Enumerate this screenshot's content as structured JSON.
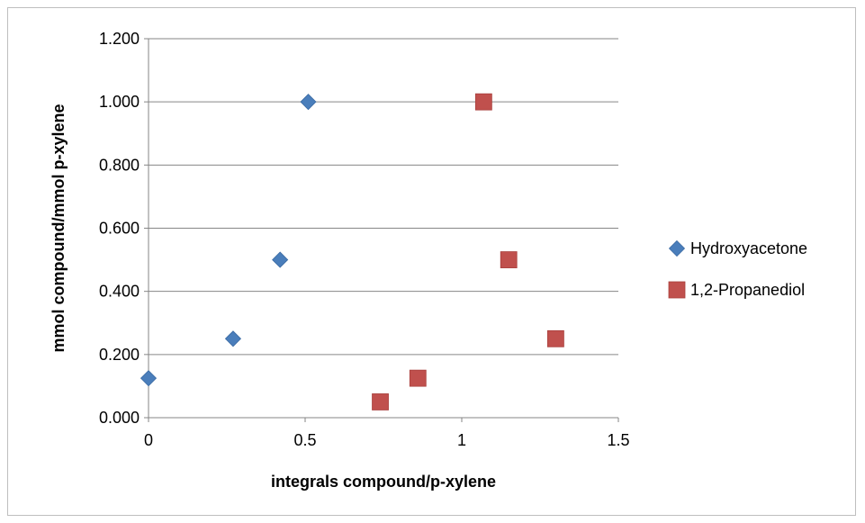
{
  "chart_data": {
    "type": "scatter",
    "title": "",
    "xlabel": "integrals compound/p-xylene",
    "ylabel": "mmol compound/mmol p-xylene",
    "xlim": [
      0,
      1.5
    ],
    "ylim": [
      0,
      1.2
    ],
    "x_ticks": [
      "0",
      "0.5",
      "1",
      "1.5"
    ],
    "y_ticks": [
      "0.000",
      "0.200",
      "0.400",
      "0.600",
      "0.800",
      "1.000",
      "1.200"
    ],
    "grid": "horizontal",
    "legend_position": "right",
    "series": [
      {
        "name": "Hydroxyacetone",
        "marker": "diamond",
        "color": "#4a7ebb",
        "points": [
          [
            0.0,
            0.125
          ],
          [
            0.27,
            0.25
          ],
          [
            0.42,
            0.5
          ],
          [
            0.51,
            1.0
          ]
        ]
      },
      {
        "name": "1,2-Propanediol",
        "marker": "square",
        "color": "#c0504d",
        "points": [
          [
            0.74,
            0.05
          ],
          [
            0.86,
            0.125
          ],
          [
            1.3,
            0.25
          ],
          [
            1.15,
            0.5
          ],
          [
            1.07,
            1.0
          ]
        ]
      }
    ]
  }
}
